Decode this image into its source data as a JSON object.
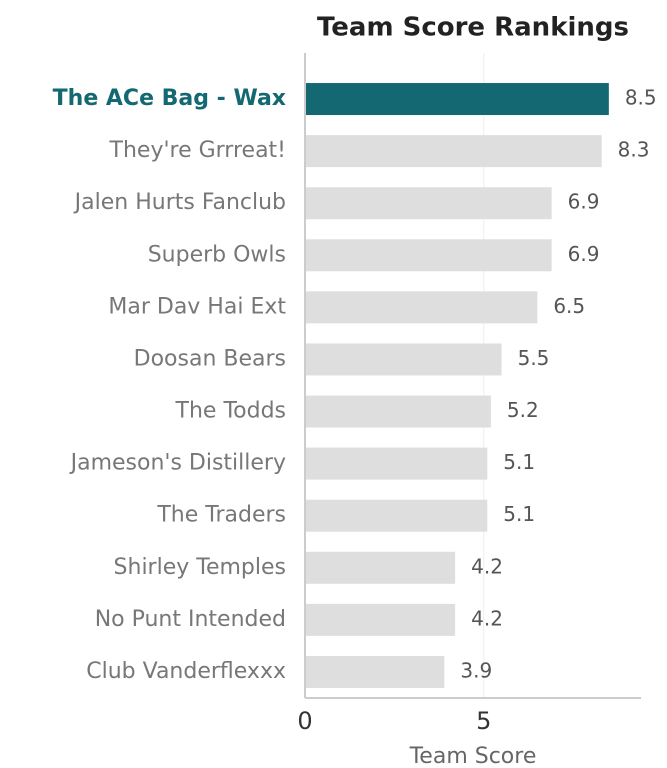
{
  "chart_data": {
    "type": "barh",
    "title": "Team Score Rankings",
    "xlabel": "Team Score",
    "categories": [
      "The ACe Bag - Wax",
      "They're Grrreat!",
      "Jalen Hurts Fanclub",
      "Superb Owls",
      "Mar Dav Hai Ext",
      "Doosan Bears",
      "The Todds",
      "Jameson's Distillery",
      "The Traders",
      "Shirley Temples",
      "No Punt Intended",
      "Club Vanderflexxx"
    ],
    "values": [
      8.5,
      8.3,
      6.9,
      6.9,
      6.5,
      5.5,
      5.2,
      5.1,
      5.1,
      4.2,
      4.2,
      3.9
    ],
    "color": "#dedede",
    "colors": [
      "#136872",
      "#dedede",
      "#dedede",
      "#dedede",
      "#dedede",
      "#dedede",
      "#dedede",
      "#dedede",
      "#dedede",
      "#dedede",
      "#dedede",
      "#dedede"
    ],
    "xlim": [
      0,
      9.4
    ],
    "xticks": [
      0,
      5
    ],
    "grid": true
  }
}
